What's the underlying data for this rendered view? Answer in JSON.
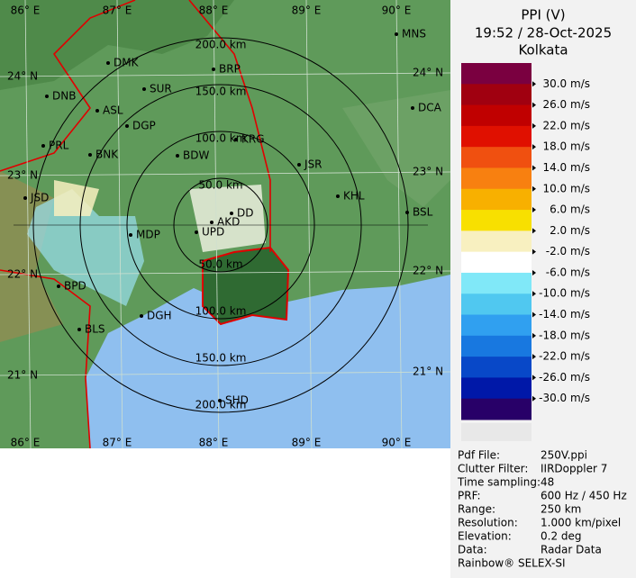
{
  "header": {
    "title": "PPI (V)",
    "time": "19:52 / 28-Oct-2025",
    "station": "Kolkata"
  },
  "legend": {
    "labels": [
      "30.0 m/s",
      "26.0 m/s",
      "22.0 m/s",
      "18.0 m/s",
      "14.0 m/s",
      "10.0 m/s",
      "6.0 m/s",
      "2.0 m/s",
      "-2.0 m/s",
      "-6.0 m/s",
      "-10.0 m/s",
      "-14.0 m/s",
      "-18.0 m/s",
      "-22.0 m/s",
      "-26.0 m/s",
      "-30.0 m/s"
    ],
    "colors": [
      "#7a0040",
      "#a00010",
      "#c00000",
      "#e01000",
      "#f05010",
      "#f88010",
      "#f8b000",
      "#f8e000",
      "#f8f0c0",
      "#ffffff",
      "#80e8f8",
      "#50c8f0",
      "#30a0f0",
      "#1878e0",
      "#0848c8",
      "#0018a8",
      "#280068"
    ]
  },
  "map": {
    "lon_labels": [
      "86° E",
      "87° E",
      "88° E",
      "89° E",
      "90° E"
    ],
    "lat_labels": [
      "24° N",
      "23° N",
      "22° N",
      "21° N"
    ],
    "ring_labels": [
      "50.0 km",
      "100.0 km",
      "150.0 km",
      "200.0 km"
    ],
    "cities": [
      "MNS",
      "DMK",
      "BRP",
      "DNB",
      "SUR",
      "ASL",
      "DCA",
      "DGP",
      "KRG",
      "PRL",
      "BNK",
      "BDW",
      "JSR",
      "JSD",
      "KHL",
      "BSL",
      "DD",
      "AKD",
      "MDP",
      "UPD",
      "BPD",
      "BLS",
      "DGH",
      "SHD"
    ]
  },
  "info": [
    [
      "Pdf File:",
      "250V.ppi"
    ],
    [
      "Clutter Filter:",
      "IIRDoppler 7"
    ],
    [
      "Time sampling:",
      "48"
    ],
    [
      "PRF:",
      "600 Hz / 450 Hz"
    ],
    [
      "Range:",
      "250 km"
    ],
    [
      "Resolution:",
      "1.000 km/pixel"
    ],
    [
      "Elevation:",
      "0.2 deg"
    ],
    [
      "Data:",
      "Radar Data"
    ]
  ],
  "footer": "Rainbow® SELEX-SI"
}
